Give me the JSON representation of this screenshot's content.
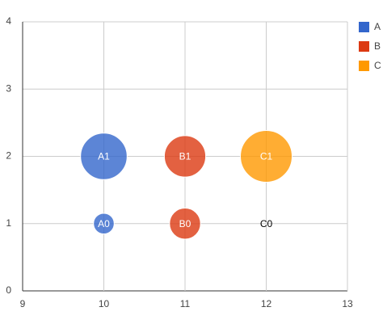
{
  "chart_data": {
    "type": "bubble",
    "xlim": [
      9,
      13
    ],
    "xticks": [
      9,
      10,
      11,
      12,
      13
    ],
    "ylim": [
      0,
      4
    ],
    "yticks": [
      0,
      1,
      2,
      3,
      4
    ],
    "grid": true,
    "legend": "right",
    "series": [
      {
        "name": "A",
        "color": "#3366cc",
        "x": [
          10,
          10
        ],
        "values": [
          1,
          2
        ],
        "sizes": [
          4,
          9
        ],
        "labels": [
          "A0",
          "A1"
        ]
      },
      {
        "name": "B",
        "color": "#dc3912",
        "x": [
          11,
          11
        ],
        "values": [
          1,
          2
        ],
        "sizes": [
          6,
          8
        ],
        "labels": [
          "B0",
          "B1"
        ]
      },
      {
        "name": "C",
        "color": "#ff9900",
        "x": [
          12,
          12
        ],
        "values": [
          1,
          2
        ],
        "sizes": [
          0,
          10
        ],
        "labels": [
          "C0",
          "C1"
        ]
      }
    ]
  }
}
